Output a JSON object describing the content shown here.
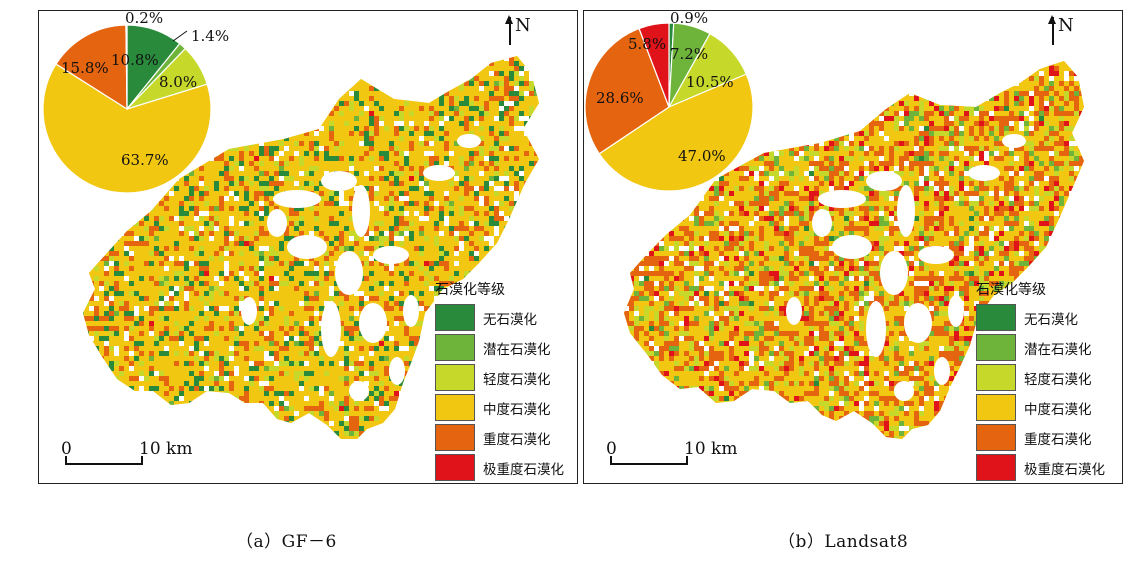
{
  "panels": [
    {
      "id": "a",
      "caption": "（a）GF－6",
      "pie": {
        "slices": [
          {
            "class_index": 0,
            "value": 10.8,
            "label": "10.8%"
          },
          {
            "class_index": 1,
            "value": 1.4,
            "label": "1.4%"
          },
          {
            "class_index": 2,
            "value": 8.0,
            "label": "8.0%"
          },
          {
            "class_index": 3,
            "value": 63.7,
            "label": "63.7%"
          },
          {
            "class_index": 4,
            "value": 15.8,
            "label": "15.8%"
          },
          {
            "class_index": 5,
            "value": 0.2,
            "label": "0.2%"
          }
        ]
      },
      "map_mix": {
        "none": 0.108,
        "potential": 0.014,
        "light": 0.08,
        "moderate": 0.637,
        "severe": 0.158,
        "extreme": 0.002
      }
    },
    {
      "id": "b",
      "caption": "（b）Landsat8",
      "pie": {
        "slices": [
          {
            "class_index": 0,
            "value": 0.9,
            "label": "0.9%"
          },
          {
            "class_index": 1,
            "value": 7.2,
            "label": "7.2%"
          },
          {
            "class_index": 2,
            "value": 10.5,
            "label": "10.5%"
          },
          {
            "class_index": 3,
            "value": 47.0,
            "label": "47.0%"
          },
          {
            "class_index": 4,
            "value": 28.6,
            "label": "28.6%"
          },
          {
            "class_index": 5,
            "value": 5.8,
            "label": "5.8%"
          }
        ]
      },
      "map_mix": {
        "none": 0.009,
        "potential": 0.072,
        "light": 0.105,
        "moderate": 0.47,
        "severe": 0.286,
        "extreme": 0.058
      }
    }
  ],
  "legend": {
    "title": "石漠化等级",
    "classes": [
      {
        "label": "无石漠化",
        "color": "#2a8a3c"
      },
      {
        "label": "潜在石漠化",
        "color": "#6fb43a"
      },
      {
        "label": "轻度石漠化",
        "color": "#c6d92b"
      },
      {
        "label": "中度石漠化",
        "color": "#f1c712"
      },
      {
        "label": "重度石漠化",
        "color": "#e5640f"
      },
      {
        "label": "极重度石漠化",
        "color": "#e0121a"
      }
    ]
  },
  "north_label": "N",
  "scale_bar": {
    "start": "0",
    "end": "10 km"
  }
}
